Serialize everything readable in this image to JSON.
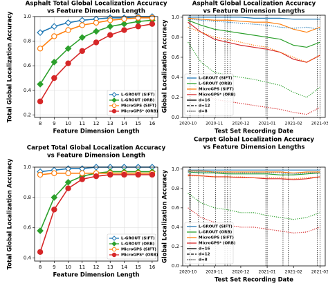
{
  "chart_data": [
    {
      "type": "line",
      "title": [
        "Asphalt Total Global Localization Accuracy",
        "vs Feature Dimension Length"
      ],
      "xlabel": "Feature Dimension Length",
      "ylabel": "Total Global Localization Accuracy",
      "x": [
        8,
        9,
        10,
        11,
        12,
        13,
        14,
        15,
        16
      ],
      "xlim": [
        7.6,
        16.4
      ],
      "xticks": [
        8,
        9,
        10,
        11,
        12,
        13,
        14,
        15,
        16
      ],
      "ylim": [
        0.18,
        1.0
      ],
      "yticks": [
        0.2,
        0.4,
        0.6,
        0.8,
        {
          "value": 1,
          "label": "1.0"
        }
      ],
      "grid": true,
      "legend": "lower right",
      "series": [
        {
          "name": "L-GROUT (SIFT)",
          "color": "#1f77b4",
          "marker": "diamond-open",
          "values": [
            0.87,
            0.92,
            0.95,
            0.97,
            0.98,
            0.99,
            0.99,
            1.0,
            1.0
          ]
        },
        {
          "name": "L-GROUT (ORB)",
          "color": "#2ca02c",
          "marker": "diamond",
          "values": [
            0.45,
            0.63,
            0.74,
            0.83,
            0.88,
            0.92,
            0.94,
            0.96,
            0.97
          ]
        },
        {
          "name": "MicroGPS (SIFT)",
          "color": "#ff7f0e",
          "marker": "circle-open",
          "values": [
            0.74,
            0.84,
            0.89,
            0.93,
            0.95,
            0.97,
            0.98,
            0.99,
            0.99
          ]
        },
        {
          "name": "MicroGPS* (ORB)",
          "color": "#d62728",
          "marker": "circle",
          "values": [
            0.31,
            0.5,
            0.62,
            0.72,
            0.79,
            0.85,
            0.89,
            0.92,
            0.94
          ]
        }
      ]
    },
    {
      "type": "timeseries",
      "title": [
        "Asphalt Global Localization Accuracy",
        "vs Feature Dimension Lengths"
      ],
      "xlabel": "Test Set Recording Date",
      "ylabel": "Global Localization Accuracy",
      "x": [
        0,
        0.5,
        1,
        1.5,
        2,
        2.5,
        3,
        3.5,
        4,
        4.5,
        5
      ],
      "xlim": [
        -0.2,
        5.2
      ],
      "xticks": [
        {
          "value": 0,
          "label": "2020-10"
        },
        {
          "value": 1,
          "label": "2020-11"
        },
        {
          "value": 2,
          "label": "2020-12"
        },
        {
          "value": 3,
          "label": "2021-01"
        },
        {
          "value": 4,
          "label": "2021-02"
        },
        {
          "value": 5,
          "label": "2021-03"
        }
      ],
      "ylim": [
        0,
        1.02
      ],
      "yticks": [
        {
          "value": 0,
          "label": "0.0"
        },
        0.2,
        0.4,
        0.6,
        0.8,
        {
          "value": 1,
          "label": "1.0"
        }
      ],
      "vlines": [
        0.05,
        0.1,
        0.4,
        0.6,
        1.05,
        1.4,
        1.5,
        1.6,
        2.95,
        3.0,
        4.9,
        5.0
      ],
      "legend": "lower left",
      "linestyles": [
        {
          "label": "d=16",
          "style": "solid"
        },
        {
          "label": "d=12",
          "style": "dashed"
        },
        {
          "label": "d=8",
          "style": "dotted"
        }
      ],
      "series": [
        {
          "name": "L-GROUT (SIFT)",
          "color": "#1f77b4",
          "style": "solid",
          "values": [
            1,
            1,
            1,
            1,
            1,
            0.99,
            0.99,
            0.99,
            0.98,
            0.98,
            0.98
          ]
        },
        {
          "name": "L-GROUT (ORB)",
          "color": "#2ca02c",
          "style": "solid",
          "values": [
            0.97,
            0.92,
            0.88,
            0.86,
            0.84,
            0.82,
            0.8,
            0.78,
            0.72,
            0.7,
            0.75
          ]
        },
        {
          "name": "MicroGPS (SIFT)",
          "color": "#ff7f0e",
          "style": "solid",
          "values": [
            0.99,
            0.98,
            0.97,
            0.97,
            0.96,
            0.95,
            0.95,
            0.93,
            0.88,
            0.85,
            0.9
          ]
        },
        {
          "name": "MicroGPS* (ORB)",
          "color": "#d62728",
          "style": "solid",
          "values": [
            0.95,
            0.85,
            0.78,
            0.75,
            0.72,
            0.7,
            0.68,
            0.65,
            0.58,
            0.55,
            0.62
          ]
        },
        {
          "name": "L-GROUT (SIFT)",
          "color": "#1f77b4",
          "style": "dotted",
          "values": [
            0.98,
            0.97,
            0.96,
            0.95,
            0.94,
            0.93,
            0.92,
            0.9,
            0.89,
            0.9,
            0.88
          ]
        },
        {
          "name": "L-GROUT (ORB)",
          "color": "#2ca02c",
          "style": "dotted",
          "values": [
            0.75,
            0.55,
            0.45,
            0.42,
            0.4,
            0.38,
            0.35,
            0.32,
            0.25,
            0.2,
            0.3
          ]
        },
        {
          "name": "MicroGPS (SIFT)",
          "color": "#ff7f0e",
          "style": "dotted",
          "values": [
            0.9,
            0.85,
            0.8,
            0.78,
            0.75,
            0.72,
            0.7,
            0.65,
            0.6,
            0.55,
            0.62
          ]
        },
        {
          "name": "MicroGPS* (ORB)",
          "color": "#d62728",
          "style": "dotted",
          "values": [
            0.4,
            0.25,
            0.18,
            0.16,
            0.14,
            0.12,
            0.1,
            0.08,
            0.05,
            0.03,
            0.1
          ]
        }
      ]
    },
    {
      "type": "line",
      "title": [
        "Carpet Total Global Localization Accuracy",
        "vs Feature Dimension Length"
      ],
      "xlabel": "Feature Dimension Length",
      "ylabel": "Total Global Localization Accuracy",
      "x": [
        8,
        9,
        10,
        11,
        12,
        13,
        14,
        15,
        16
      ],
      "xlim": [
        7.6,
        16.4
      ],
      "xticks": [
        8,
        9,
        10,
        11,
        12,
        13,
        14,
        15,
        16
      ],
      "ylim": [
        0.38,
        1.0
      ],
      "yticks": [
        0.4,
        0.6,
        0.8,
        {
          "value": 1,
          "label": "1.0"
        }
      ],
      "grid": true,
      "legend": "lower right",
      "series": [
        {
          "name": "L-GROUT (SIFT)",
          "color": "#1f77b4",
          "marker": "diamond-open",
          "values": [
            0.97,
            0.98,
            0.99,
            0.99,
            1.0,
            1.0,
            1.0,
            1.0,
            1.0
          ]
        },
        {
          "name": "L-GROUT (ORB)",
          "color": "#2ca02c",
          "marker": "diamond",
          "values": [
            0.58,
            0.8,
            0.9,
            0.94,
            0.96,
            0.97,
            0.97,
            0.97,
            0.97
          ]
        },
        {
          "name": "MicroGPS (SIFT)",
          "color": "#ff7f0e",
          "marker": "circle-open",
          "values": [
            0.95,
            0.96,
            0.96,
            0.96,
            0.96,
            0.96,
            0.96,
            0.96,
            0.96
          ]
        },
        {
          "name": "MicroGPS* (ORB)",
          "color": "#d62728",
          "marker": "circle",
          "values": [
            0.44,
            0.72,
            0.86,
            0.92,
            0.94,
            0.95,
            0.95,
            0.95,
            0.95
          ]
        }
      ]
    },
    {
      "type": "timeseries",
      "title": [
        "Carpet Global Localization Accuracy",
        "vs Feature Dimension Lengths"
      ],
      "xlabel": "Test Set Recording Date",
      "ylabel": "Global Localization Accuracy",
      "x": [
        0,
        0.5,
        1,
        1.5,
        2,
        2.5,
        3,
        3.5,
        4,
        4.5,
        5
      ],
      "xlim": [
        -0.2,
        5.2
      ],
      "xticks": [
        {
          "value": 0,
          "label": "2020-10"
        },
        {
          "value": 1,
          "label": "2020-11"
        },
        {
          "value": 2,
          "label": "2020-12"
        },
        {
          "value": 3,
          "label": "2021-01"
        },
        {
          "value": 4,
          "label": "2021-02"
        },
        {
          "value": 5,
          "label": "2021-03"
        }
      ],
      "ylim": [
        0,
        1.02
      ],
      "yticks": [
        {
          "value": 0,
          "label": "0.0"
        },
        0.2,
        0.4,
        0.6,
        0.8,
        {
          "value": 1,
          "label": "1.0"
        }
      ],
      "vlines": [
        0.05,
        0.1,
        0.4,
        0.6,
        1.05,
        1.4,
        1.5,
        1.6,
        2.95,
        3.0,
        3.6,
        3.8,
        4.9,
        5.0
      ],
      "legend": "lower left",
      "linestyles": [
        {
          "label": "d=16",
          "style": "solid"
        },
        {
          "label": "d=12",
          "style": "dashed"
        },
        {
          "label": "d=8",
          "style": "dotted"
        }
      ],
      "series": [
        {
          "name": "L-GROUT (SIFT)",
          "color": "#1f77b4",
          "style": "solid",
          "values": [
            0.99,
            0.99,
            0.99,
            0.99,
            0.99,
            0.99,
            0.99,
            0.99,
            0.99,
            0.99,
            0.99
          ]
        },
        {
          "name": "L-GROUT (ORB)",
          "color": "#2ca02c",
          "style": "solid",
          "values": [
            0.97,
            0.96,
            0.96,
            0.95,
            0.95,
            0.95,
            0.95,
            0.94,
            0.94,
            0.95,
            0.96
          ]
        },
        {
          "name": "MicroGPS (SIFT)",
          "color": "#ff7f0e",
          "style": "solid",
          "values": [
            0.98,
            0.98,
            0.97,
            0.97,
            0.97,
            0.97,
            0.97,
            0.97,
            0.96,
            0.97,
            0.97
          ]
        },
        {
          "name": "MicroGPS* (ORB)",
          "color": "#d62728",
          "style": "solid",
          "values": [
            0.94,
            0.93,
            0.92,
            0.92,
            0.91,
            0.91,
            0.9,
            0.9,
            0.89,
            0.9,
            0.92
          ]
        },
        {
          "name": "L-GROUT (SIFT)",
          "color": "#1f77b4",
          "style": "dotted",
          "values": [
            0.97,
            0.97,
            0.97,
            0.96,
            0.96,
            0.96,
            0.96,
            0.96,
            0.95,
            0.96,
            0.96
          ]
        },
        {
          "name": "L-GROUT (ORB)",
          "color": "#2ca02c",
          "style": "dotted",
          "values": [
            0.75,
            0.65,
            0.6,
            0.58,
            0.55,
            0.55,
            0.52,
            0.5,
            0.48,
            0.5,
            0.55
          ]
        },
        {
          "name": "MicroGPS (SIFT)",
          "color": "#ff7f0e",
          "style": "dotted",
          "values": [
            0.93,
            0.93,
            0.92,
            0.92,
            0.92,
            0.91,
            0.91,
            0.91,
            0.9,
            0.91,
            0.92
          ]
        },
        {
          "name": "MicroGPS* (ORB)",
          "color": "#d62728",
          "style": "dotted",
          "values": [
            0.6,
            0.5,
            0.45,
            0.42,
            0.4,
            0.4,
            0.38,
            0.36,
            0.34,
            0.35,
            0.4
          ]
        }
      ]
    }
  ]
}
